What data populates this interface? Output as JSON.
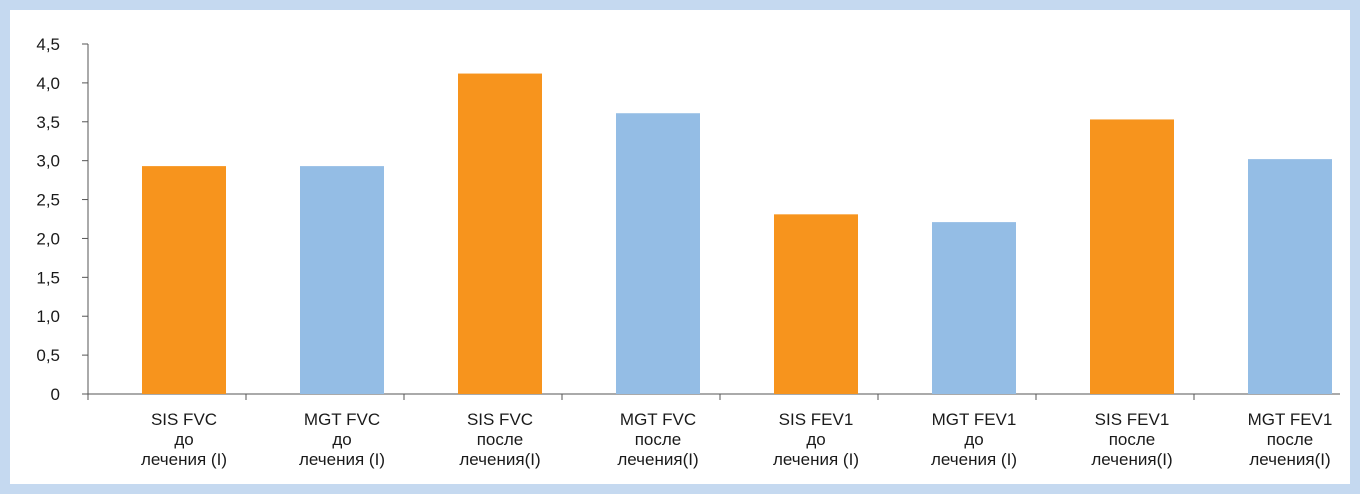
{
  "chart_data": {
    "type": "bar",
    "title": "",
    "xlabel": "",
    "ylabel": "",
    "ylim": [
      0,
      4.5
    ],
    "yticks": [
      "0",
      "0,5",
      "1,0",
      "1,5",
      "2,0",
      "2,5",
      "3,0",
      "3,5",
      "4,0",
      "4,5"
    ],
    "grid": false,
    "legend": "none",
    "categories": [
      [
        "SIS FVC",
        "до",
        "лечения (I)"
      ],
      [
        "MGT FVC",
        "до",
        "лечения (I)"
      ],
      [
        "SIS FVC",
        "после",
        "лечения(I)"
      ],
      [
        "MGT FVC",
        "после",
        "лечения(I)"
      ],
      [
        "SIS FEV1",
        "до",
        "лечения (I)"
      ],
      [
        "MGT FEV1",
        "до",
        "лечения (I)"
      ],
      [
        "SIS FEV1",
        "после",
        "лечения(I)"
      ],
      [
        "MGT FEV1",
        "после",
        "лечения(I)"
      ]
    ],
    "values": [
      2.93,
      2.93,
      4.12,
      3.61,
      2.31,
      2.21,
      3.53,
      3.02
    ],
    "colors": {
      "SIS": "#f7941d",
      "MGT": "#94bde5",
      "axis": "#555555",
      "frame": "#c5d9f0"
    }
  }
}
